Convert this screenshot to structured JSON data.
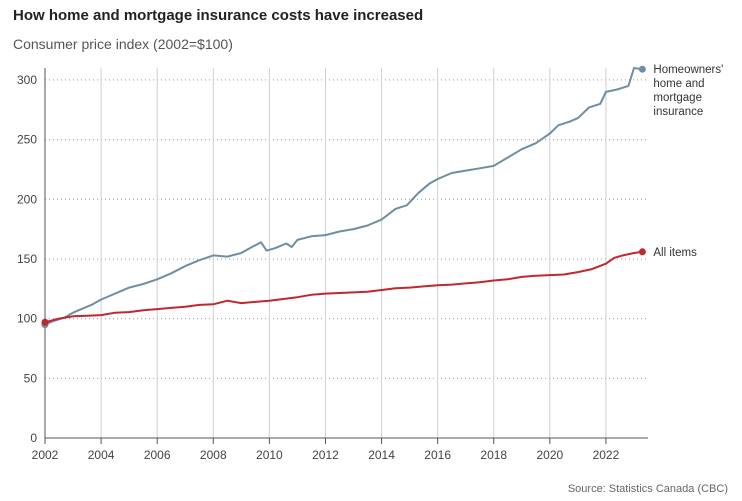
{
  "chart_data": {
    "type": "line",
    "title": "How home and mortgage insurance costs have increased",
    "subtitle": "Consumer price index (2002=$100)",
    "source": "Source: Statistics Canada (CBC)",
    "xlabel": "",
    "ylabel": "",
    "xlim": [
      2002,
      2023.5
    ],
    "ylim": [
      0,
      310
    ],
    "x_ticks": [
      2002,
      2004,
      2006,
      2008,
      2010,
      2012,
      2014,
      2016,
      2018,
      2020,
      2022
    ],
    "y_ticks": [
      0,
      50,
      100,
      150,
      200,
      250,
      300
    ],
    "grid": {
      "x": "solid",
      "y": "dotted"
    },
    "series": [
      {
        "name": "Homeowners' home and mortgage insurance",
        "label_lines": [
          "Homeowners'",
          "home and",
          "mortgage",
          "insurance"
        ],
        "color": "#6e8ea3",
        "points": [
          [
            2002.0,
            95
          ],
          [
            2002.3,
            98
          ],
          [
            2002.7,
            101
          ],
          [
            2003.0,
            105
          ],
          [
            2003.3,
            108
          ],
          [
            2003.7,
            112
          ],
          [
            2004.0,
            116
          ],
          [
            2004.3,
            119
          ],
          [
            2004.7,
            123
          ],
          [
            2005.0,
            126
          ],
          [
            2005.5,
            129
          ],
          [
            2006.0,
            133
          ],
          [
            2006.5,
            138
          ],
          [
            2007.0,
            144
          ],
          [
            2007.5,
            149
          ],
          [
            2008.0,
            153
          ],
          [
            2008.5,
            152
          ],
          [
            2009.0,
            155
          ],
          [
            2009.3,
            159
          ],
          [
            2009.7,
            164
          ],
          [
            2009.9,
            157
          ],
          [
            2010.2,
            159
          ],
          [
            2010.6,
            163
          ],
          [
            2010.8,
            160
          ],
          [
            2011.0,
            166
          ],
          [
            2011.5,
            169
          ],
          [
            2012.0,
            170
          ],
          [
            2012.5,
            173
          ],
          [
            2013.0,
            175
          ],
          [
            2013.5,
            178
          ],
          [
            2014.0,
            183
          ],
          [
            2014.5,
            192
          ],
          [
            2014.9,
            195
          ],
          [
            2015.3,
            205
          ],
          [
            2015.7,
            213
          ],
          [
            2016.0,
            217
          ],
          [
            2016.5,
            222
          ],
          [
            2017.0,
            224
          ],
          [
            2017.5,
            226
          ],
          [
            2018.0,
            228
          ],
          [
            2018.5,
            235
          ],
          [
            2019.0,
            242
          ],
          [
            2019.5,
            247
          ],
          [
            2020.0,
            255
          ],
          [
            2020.3,
            262
          ],
          [
            2020.7,
            265
          ],
          [
            2021.0,
            268
          ],
          [
            2021.4,
            277
          ],
          [
            2021.8,
            280
          ],
          [
            2022.0,
            290
          ],
          [
            2022.4,
            292
          ],
          [
            2022.8,
            295
          ],
          [
            2023.0,
            310
          ],
          [
            2023.3,
            309
          ]
        ]
      },
      {
        "name": "All items",
        "label_lines": [
          "All items"
        ],
        "color": "#c1272d",
        "points": [
          [
            2002.0,
            97
          ],
          [
            2002.5,
            100
          ],
          [
            2003.0,
            102
          ],
          [
            2003.5,
            102.5
          ],
          [
            2004.0,
            103
          ],
          [
            2004.5,
            105
          ],
          [
            2005.0,
            105.5
          ],
          [
            2005.5,
            107
          ],
          [
            2006.0,
            108
          ],
          [
            2006.5,
            109
          ],
          [
            2007.0,
            110
          ],
          [
            2007.5,
            111.5
          ],
          [
            2008.0,
            112
          ],
          [
            2008.5,
            115
          ],
          [
            2009.0,
            113
          ],
          [
            2009.5,
            114
          ],
          [
            2010.0,
            115
          ],
          [
            2010.5,
            116.5
          ],
          [
            2011.0,
            118
          ],
          [
            2011.5,
            120
          ],
          [
            2012.0,
            121
          ],
          [
            2012.5,
            121.5
          ],
          [
            2013.0,
            122
          ],
          [
            2013.5,
            122.5
          ],
          [
            2014.0,
            124
          ],
          [
            2014.5,
            125.5
          ],
          [
            2015.0,
            126
          ],
          [
            2015.5,
            127
          ],
          [
            2016.0,
            128
          ],
          [
            2016.5,
            128.5
          ],
          [
            2017.0,
            129.5
          ],
          [
            2017.5,
            130.5
          ],
          [
            2018.0,
            132
          ],
          [
            2018.5,
            133
          ],
          [
            2019.0,
            135
          ],
          [
            2019.5,
            136
          ],
          [
            2020.0,
            136.5
          ],
          [
            2020.5,
            137
          ],
          [
            2021.0,
            139
          ],
          [
            2021.5,
            141.5
          ],
          [
            2022.0,
            146
          ],
          [
            2022.3,
            151
          ],
          [
            2022.6,
            153
          ],
          [
            2023.0,
            155
          ],
          [
            2023.3,
            156
          ]
        ]
      }
    ]
  }
}
